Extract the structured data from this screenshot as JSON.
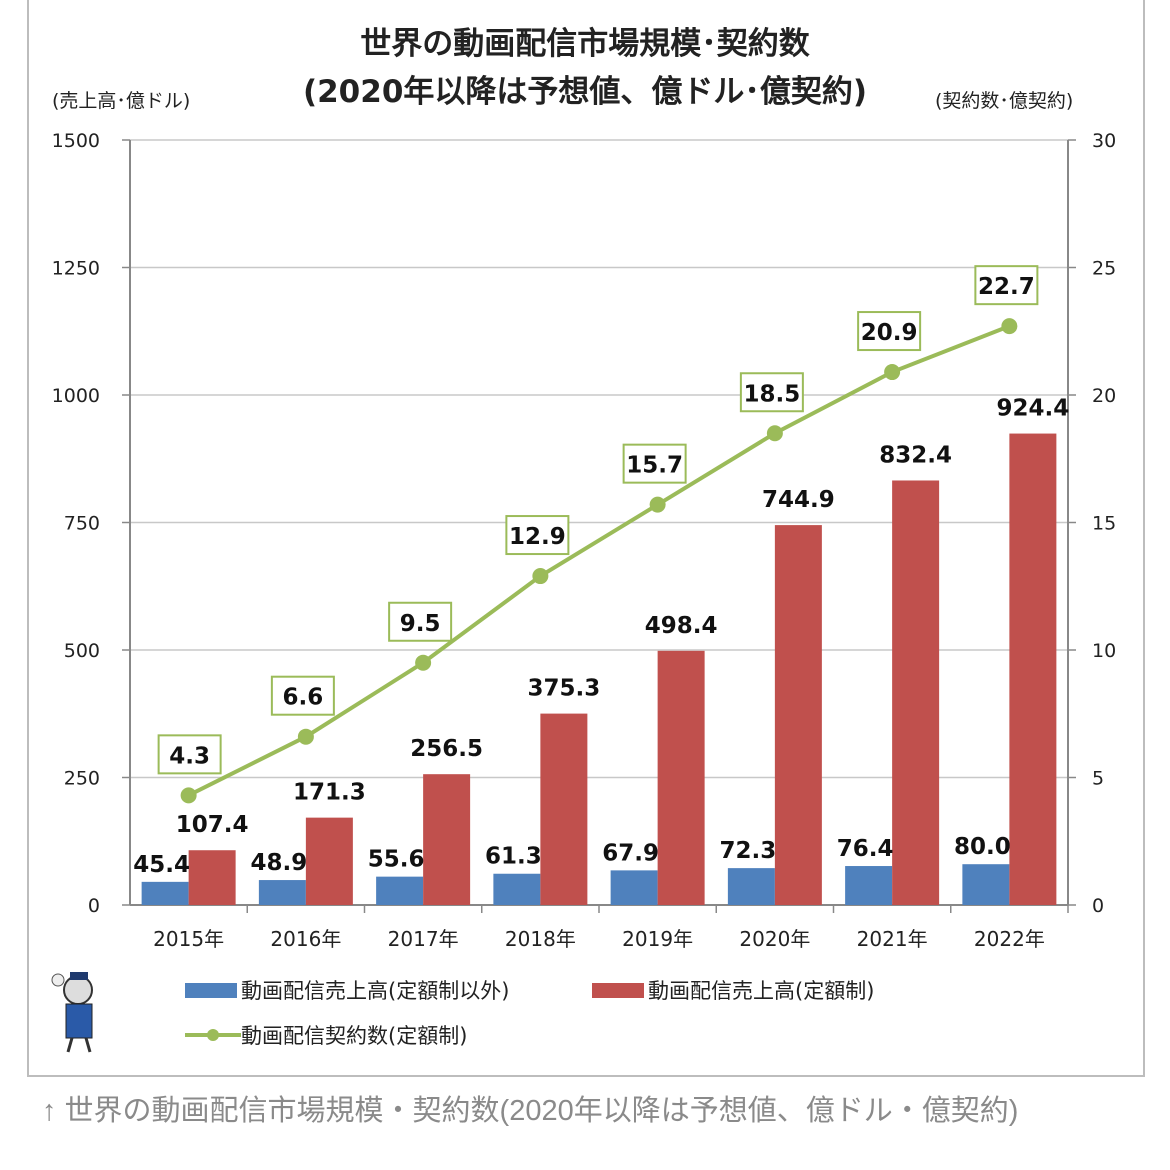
{
  "chart_data": {
    "type": "bar+line",
    "title": "世界の動画配信市場規模･契約数",
    "subtitle": "(2020年以降は予想値、億ドル･億契約)",
    "ylabel_left": "(売上高･億ドル)",
    "ylabel_right": "(契約数･億契約)",
    "categories": [
      "2015年",
      "2016年",
      "2017年",
      "2018年",
      "2019年",
      "2020年",
      "2021年",
      "2022年"
    ],
    "ylim_left": [
      0,
      1500
    ],
    "ylim_right": [
      0,
      30
    ],
    "left_ticks": [
      "0",
      "250",
      "500",
      "750",
      "1000",
      "1250",
      "1500"
    ],
    "right_ticks": [
      "0",
      "5",
      "10",
      "15",
      "20",
      "25",
      "30"
    ],
    "grid": true,
    "legend_position": "bottom",
    "series": [
      {
        "name": "動画配信売上高(定額制以外)",
        "type": "bar",
        "axis": "left",
        "color": "#4f81bd",
        "values": [
          45.4,
          48.9,
          55.6,
          61.3,
          67.9,
          72.3,
          76.4,
          80.0
        ],
        "labels": [
          "45.4",
          "48.9",
          "55.6",
          "61.3",
          "67.9",
          "72.3",
          "76.4",
          "80.0"
        ]
      },
      {
        "name": "動画配信売上高(定額制)",
        "type": "bar",
        "axis": "left",
        "color": "#c0504d",
        "values": [
          107.4,
          171.3,
          256.5,
          375.3,
          498.4,
          744.9,
          832.4,
          924.4
        ],
        "labels": [
          "107.4",
          "171.3",
          "256.5",
          "375.3",
          "498.4",
          "744.9",
          "832.4",
          "924.4"
        ]
      },
      {
        "name": "動画配信契約数(定額制)",
        "type": "line",
        "axis": "right",
        "color": "#9bbb59",
        "values": [
          4.3,
          6.6,
          9.5,
          12.9,
          15.7,
          18.5,
          20.9,
          22.7
        ],
        "labels": [
          "4.3",
          "6.6",
          "9.5",
          "12.9",
          "15.7",
          "18.5",
          "20.9",
          "22.7"
        ]
      }
    ]
  },
  "caption": "↑ 世界の動画配信市場規模・契約数(2020年以降は予想値、億ドル・億契約)"
}
